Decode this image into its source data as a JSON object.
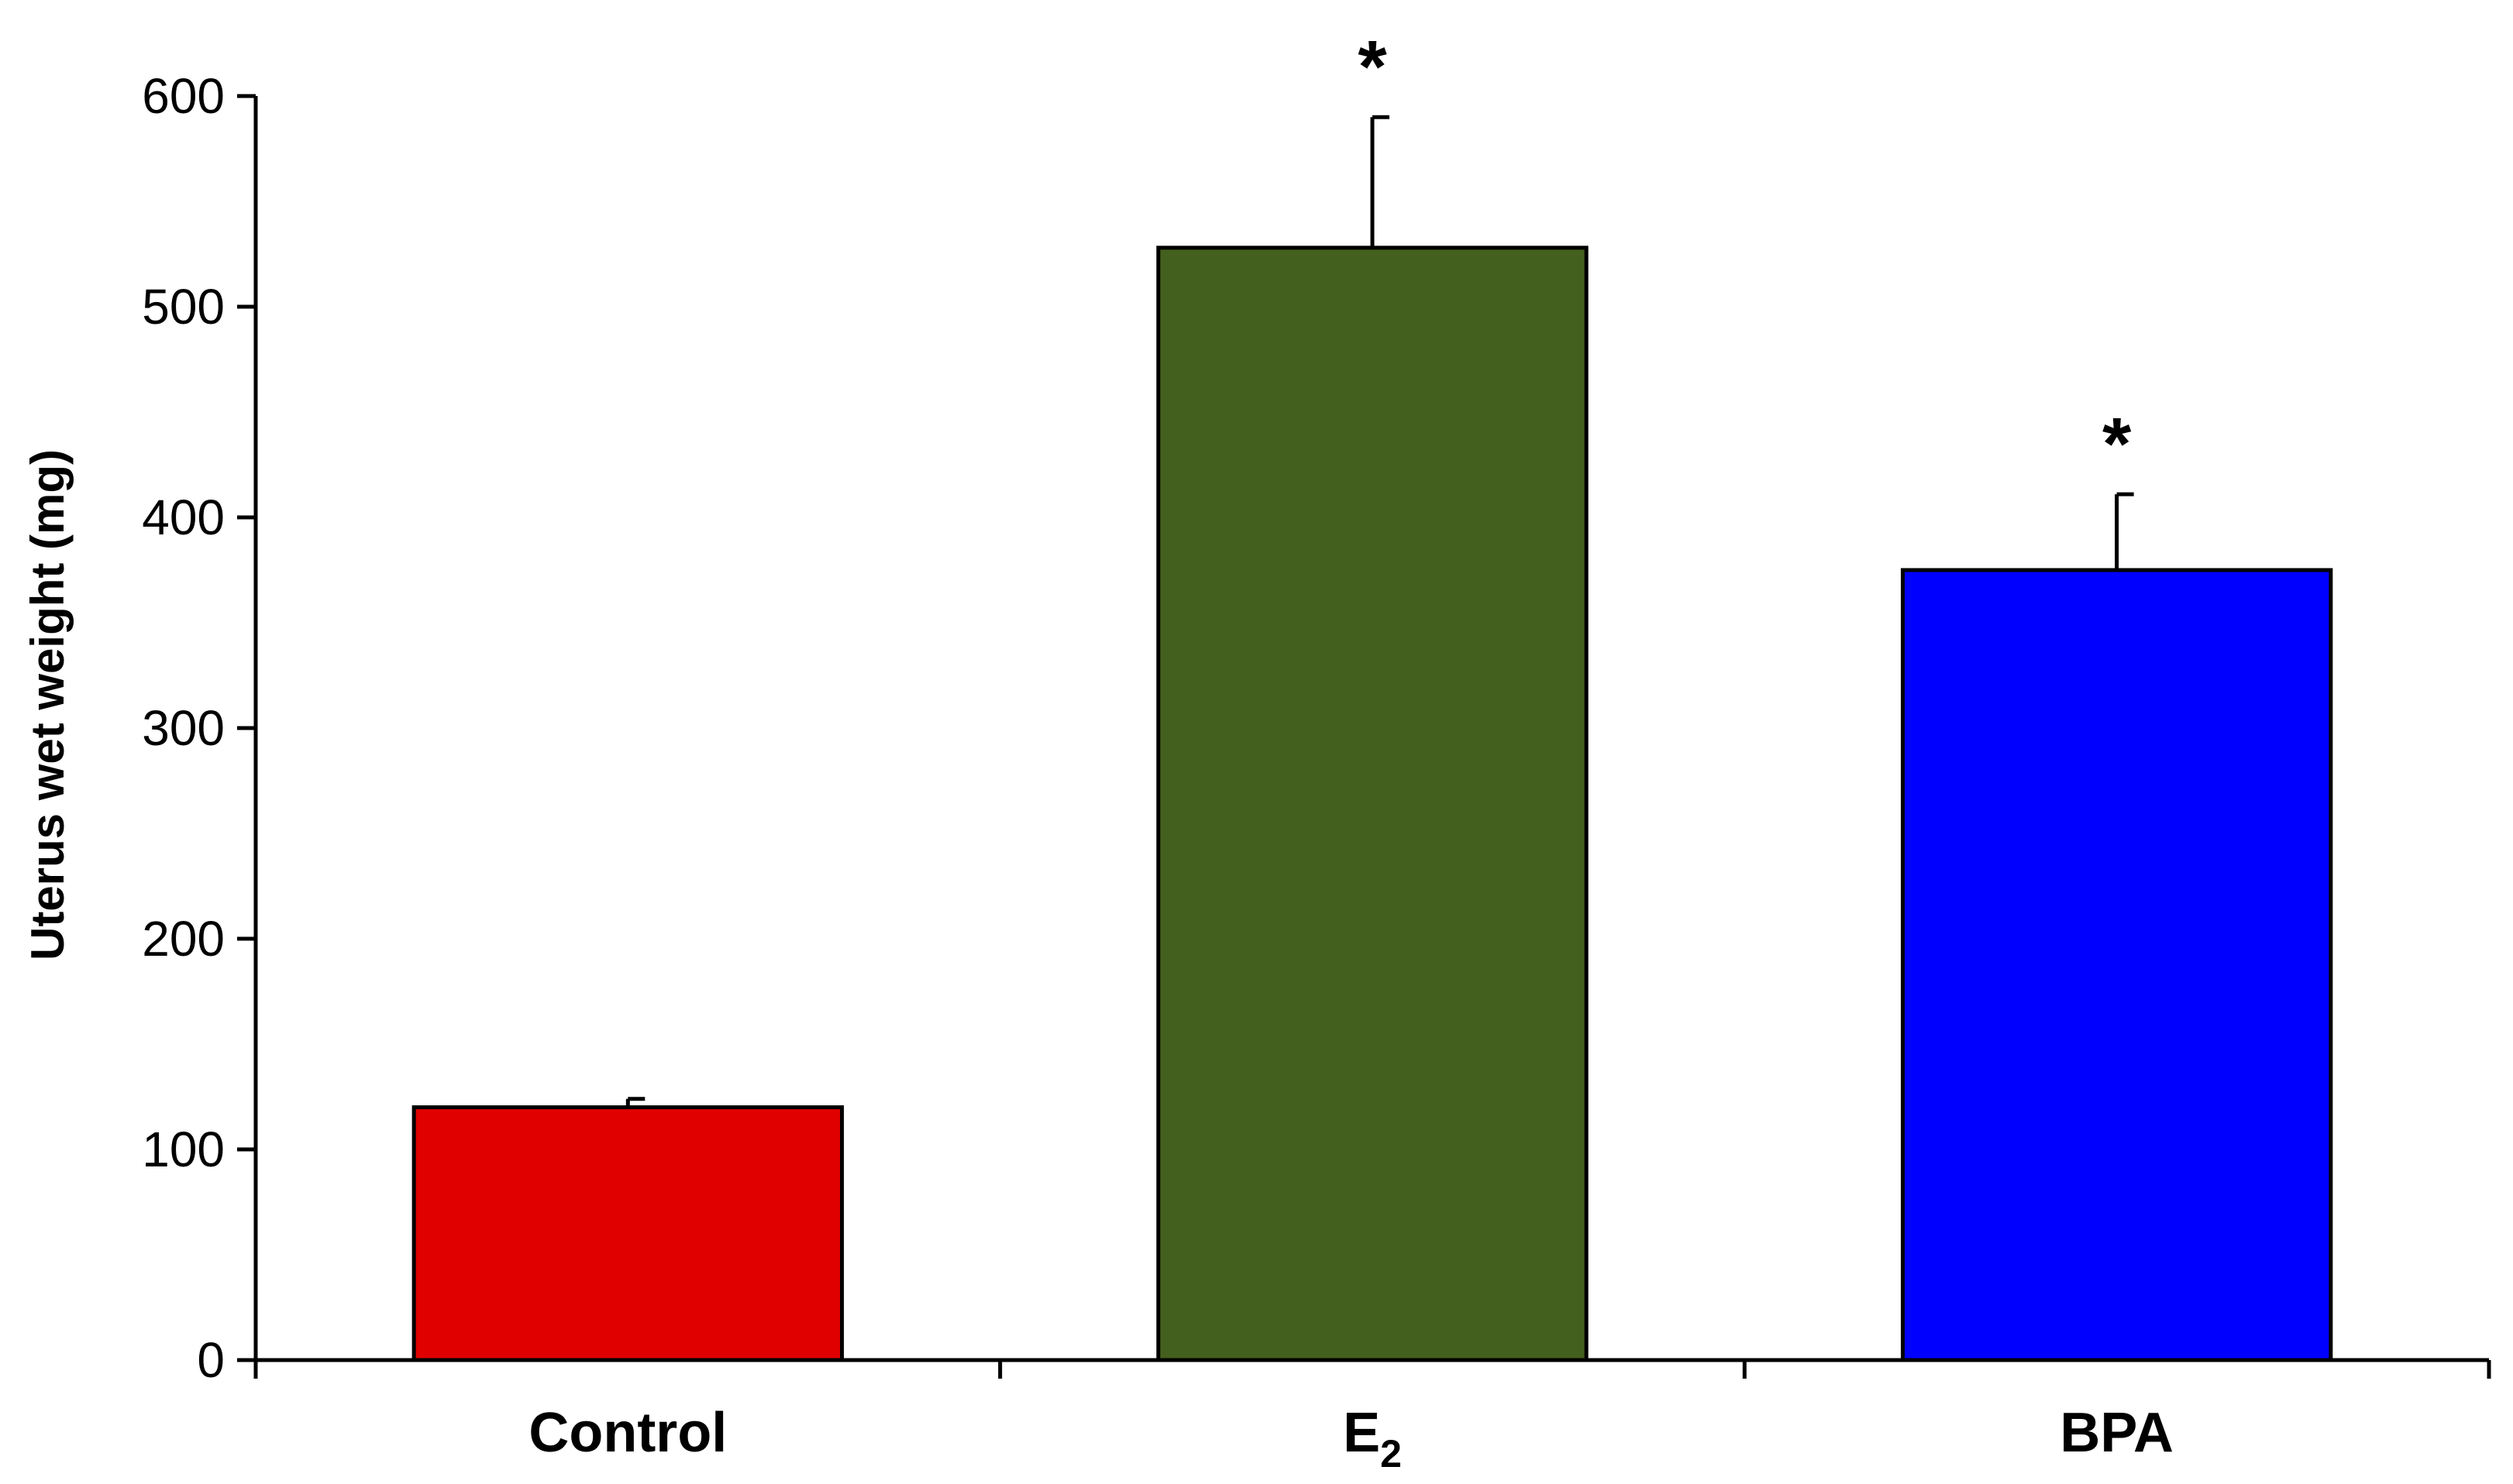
{
  "chart_data": {
    "type": "bar",
    "ylabel": "Uterus wet weight (mg)",
    "xlabel": "",
    "ylim": [
      0,
      600
    ],
    "yticks": [
      0,
      100,
      200,
      300,
      400,
      500,
      600
    ],
    "yticks_text": [
      "0",
      "100",
      "200",
      "300",
      "400",
      "500",
      "600"
    ],
    "grid": false,
    "categories": [
      {
        "main": "Control",
        "sub": ""
      },
      {
        "main": "E",
        "sub": "2"
      },
      {
        "main": "BPA",
        "sub": ""
      }
    ],
    "values": [
      120,
      528,
      375
    ],
    "errors": [
      4,
      62,
      36
    ],
    "significance": [
      "",
      "*",
      "*"
    ],
    "colors": [
      "#e00000",
      "#44601e",
      "#0000ff"
    ]
  }
}
